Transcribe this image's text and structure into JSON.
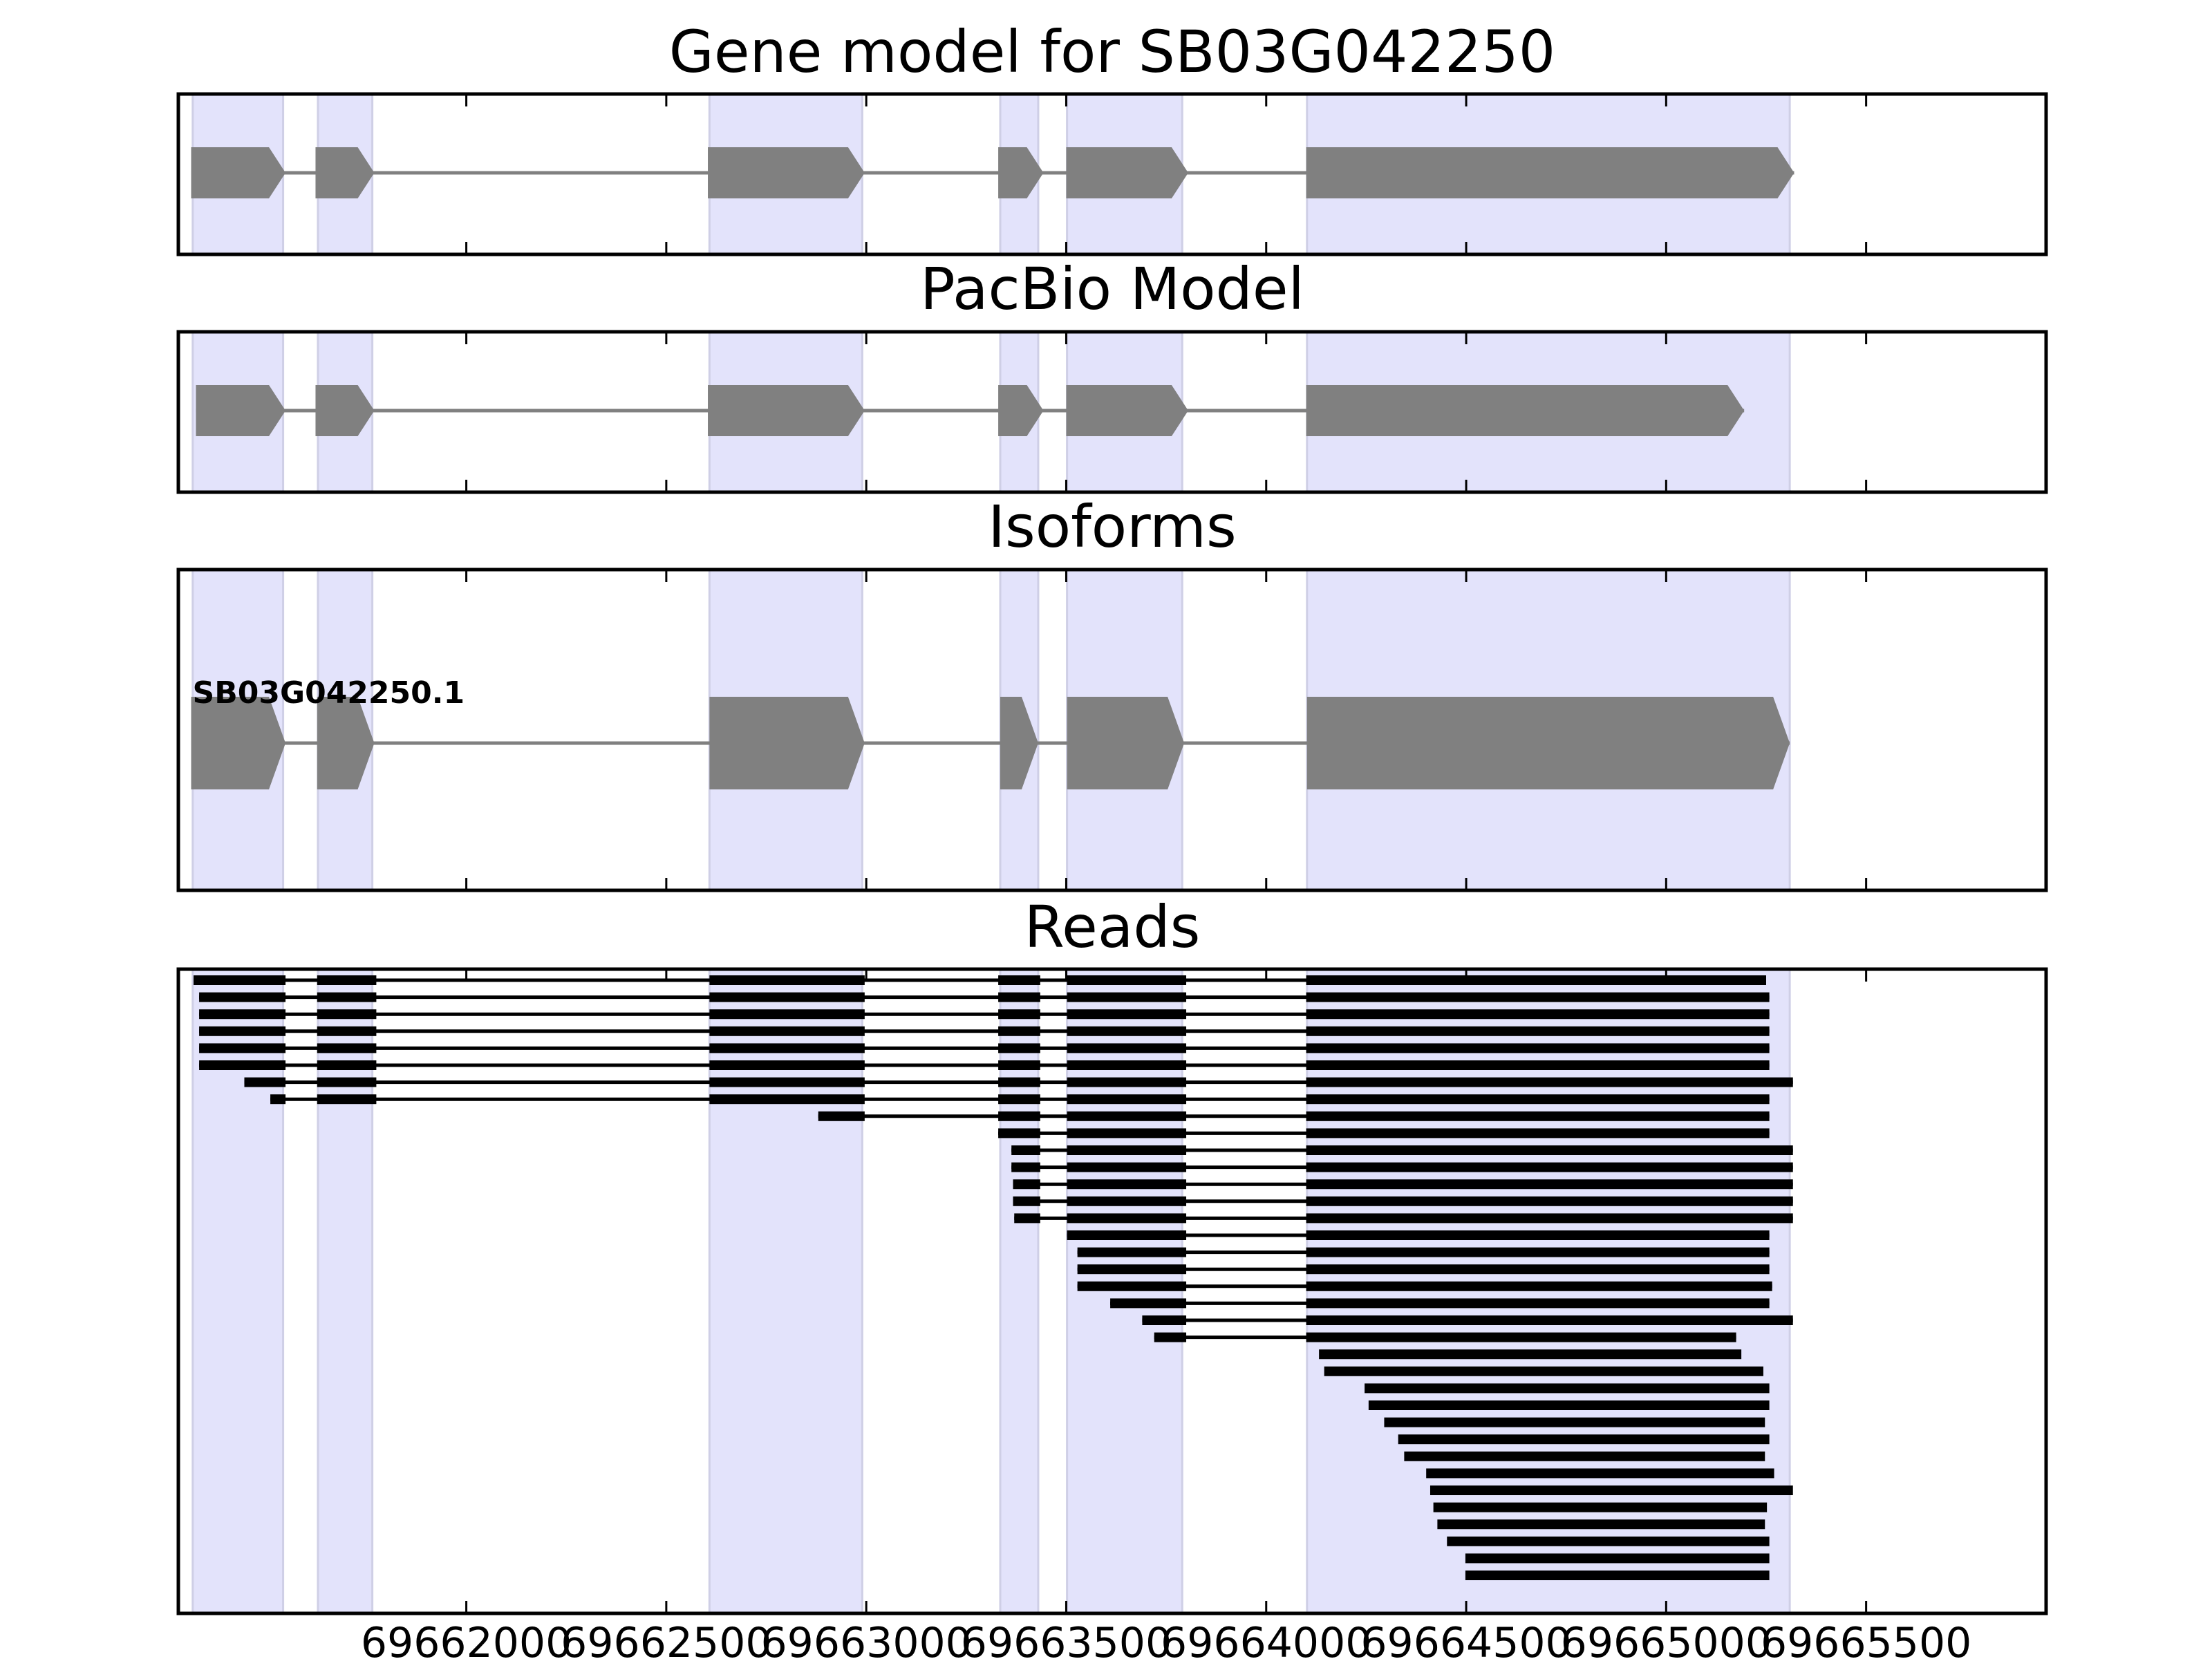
{
  "chart_data": {
    "type": "gene-structure",
    "xlim": [
      69661280,
      69665950
    ],
    "x_ticks": [
      69662000,
      69662500,
      69663000,
      69663500,
      69664000,
      69664500,
      69665000,
      69665500
    ],
    "x_tick_labels": [
      "69662000",
      "69662500",
      "69663000",
      "69663500",
      "69664000",
      "69664500",
      "69665000",
      "69665500"
    ],
    "colors": {
      "exon_band": "#e3e3fb",
      "exon_shape": "#808080",
      "intron_line": "#808080",
      "read": "#000000",
      "frame": "#000000"
    },
    "exon_bands": [
      [
        69661316,
        69661542
      ],
      [
        69661629,
        69661765
      ],
      [
        69662608,
        69662990
      ],
      [
        69663335,
        69663430
      ],
      [
        69663502,
        69663790
      ],
      [
        69664102,
        69665309
      ]
    ],
    "panels": [
      {
        "title": "Gene model for SB03G042250",
        "type": "model",
        "exons": [
          [
            69661312,
            69661548
          ],
          [
            69661623,
            69661770
          ],
          [
            69662604,
            69662996
          ],
          [
            69663330,
            69663443
          ],
          [
            69663500,
            69663805
          ],
          [
            69664100,
            69665320
          ]
        ]
      },
      {
        "title": "PacBio Model",
        "type": "model",
        "exons": [
          [
            69661324,
            69661548
          ],
          [
            69661623,
            69661770
          ],
          [
            69662604,
            69662996
          ],
          [
            69663330,
            69663443
          ],
          [
            69663500,
            69663805
          ],
          [
            69664100,
            69665195
          ]
        ]
      },
      {
        "title": "Isoforms",
        "type": "isoforms",
        "isoforms": [
          {
            "name": "SB03G042250.1",
            "exons": [
              [
                69661312,
                69661548
              ],
              [
                69661627,
                69661770
              ],
              [
                69662608,
                69662996
              ],
              [
                69663335,
                69663430
              ],
              [
                69663502,
                69663795
              ],
              [
                69664102,
                69665309
              ]
            ]
          }
        ]
      },
      {
        "title": "Reads",
        "type": "reads",
        "reads": [
          [
            [
              69661318,
              69661548
            ],
            [
              69661627,
              69661775
            ],
            [
              69662608,
              69662996
            ],
            [
              69663330,
              69663435
            ],
            [
              69663502,
              69663800
            ],
            [
              69664100,
              69665250
            ]
          ],
          [
            [
              69661332,
              69661548
            ],
            [
              69661627,
              69661775
            ],
            [
              69662608,
              69662996
            ],
            [
              69663330,
              69663435
            ],
            [
              69663502,
              69663800
            ],
            [
              69664100,
              69665258
            ]
          ],
          [
            [
              69661332,
              69661548
            ],
            [
              69661627,
              69661775
            ],
            [
              69662608,
              69662996
            ],
            [
              69663330,
              69663435
            ],
            [
              69663502,
              69663800
            ],
            [
              69664100,
              69665258
            ]
          ],
          [
            [
              69661332,
              69661548
            ],
            [
              69661627,
              69661775
            ],
            [
              69662608,
              69662996
            ],
            [
              69663330,
              69663435
            ],
            [
              69663502,
              69663800
            ],
            [
              69664100,
              69665258
            ]
          ],
          [
            [
              69661332,
              69661548
            ],
            [
              69661627,
              69661775
            ],
            [
              69662608,
              69662996
            ],
            [
              69663330,
              69663435
            ],
            [
              69663502,
              69663800
            ],
            [
              69664100,
              69665258
            ]
          ],
          [
            [
              69661332,
              69661548
            ],
            [
              69661627,
              69661775
            ],
            [
              69662608,
              69662996
            ],
            [
              69663330,
              69663435
            ],
            [
              69663502,
              69663800
            ],
            [
              69664100,
              69665258
            ]
          ],
          [
            [
              69661445,
              69661548
            ],
            [
              69661627,
              69661775
            ],
            [
              69662608,
              69662996
            ],
            [
              69663330,
              69663435
            ],
            [
              69663502,
              69663800
            ],
            [
              69664100,
              69665317
            ]
          ],
          [
            [
              69661510,
              69661548
            ],
            [
              69661627,
              69661775
            ],
            [
              69662608,
              69662996
            ],
            [
              69663330,
              69663435
            ],
            [
              69663502,
              69663800
            ],
            [
              69664100,
              69665258
            ]
          ],
          [
            [
              69662880,
              69662996
            ],
            [
              69663330,
              69663435
            ],
            [
              69663502,
              69663800
            ],
            [
              69664100,
              69665258
            ]
          ],
          [
            [
              69663330,
              69663435
            ],
            [
              69663502,
              69663800
            ],
            [
              69664100,
              69665258
            ]
          ],
          [
            [
              69663363,
              69663435
            ],
            [
              69663502,
              69663800
            ],
            [
              69664100,
              69665317
            ]
          ],
          [
            [
              69663363,
              69663435
            ],
            [
              69663502,
              69663800
            ],
            [
              69664100,
              69665317
            ]
          ],
          [
            [
              69663367,
              69663435
            ],
            [
              69663502,
              69663800
            ],
            [
              69664100,
              69665317
            ]
          ],
          [
            [
              69663367,
              69663435
            ],
            [
              69663502,
              69663800
            ],
            [
              69664100,
              69665317
            ]
          ],
          [
            [
              69663370,
              69663435
            ],
            [
              69663502,
              69663800
            ],
            [
              69664100,
              69665317
            ]
          ],
          [
            [
              69663502,
              69663800
            ],
            [
              69664100,
              69665258
            ]
          ],
          [
            [
              69663528,
              69663800
            ],
            [
              69664100,
              69665258
            ]
          ],
          [
            [
              69663528,
              69663800
            ],
            [
              69664100,
              69665258
            ]
          ],
          [
            [
              69663528,
              69663800
            ],
            [
              69664100,
              69665265
            ]
          ],
          [
            [
              69663610,
              69663800
            ],
            [
              69664100,
              69665258
            ]
          ],
          [
            [
              69663690,
              69663800
            ],
            [
              69664100,
              69665317
            ]
          ],
          [
            [
              69663720,
              69663800
            ],
            [
              69664100,
              69665175
            ]
          ],
          [
            [
              69664132,
              69665188
            ]
          ],
          [
            [
              69664145,
              69665243
            ]
          ],
          [
            [
              69664246,
              69665258
            ]
          ],
          [
            [
              69664256,
              69665258
            ]
          ],
          [
            [
              69664295,
              69665247
            ]
          ],
          [
            [
              69664330,
              69665258
            ]
          ],
          [
            [
              69664345,
              69665247
            ]
          ],
          [
            [
              69664400,
              69665270
            ]
          ],
          [
            [
              69664410,
              69665317
            ]
          ],
          [
            [
              69664418,
              69665252
            ]
          ],
          [
            [
              69664428,
              69665247
            ]
          ],
          [
            [
              69664452,
              69665258
            ]
          ],
          [
            [
              69664498,
              69665258
            ]
          ],
          [
            [
              69664498,
              69665258
            ]
          ]
        ]
      }
    ]
  }
}
